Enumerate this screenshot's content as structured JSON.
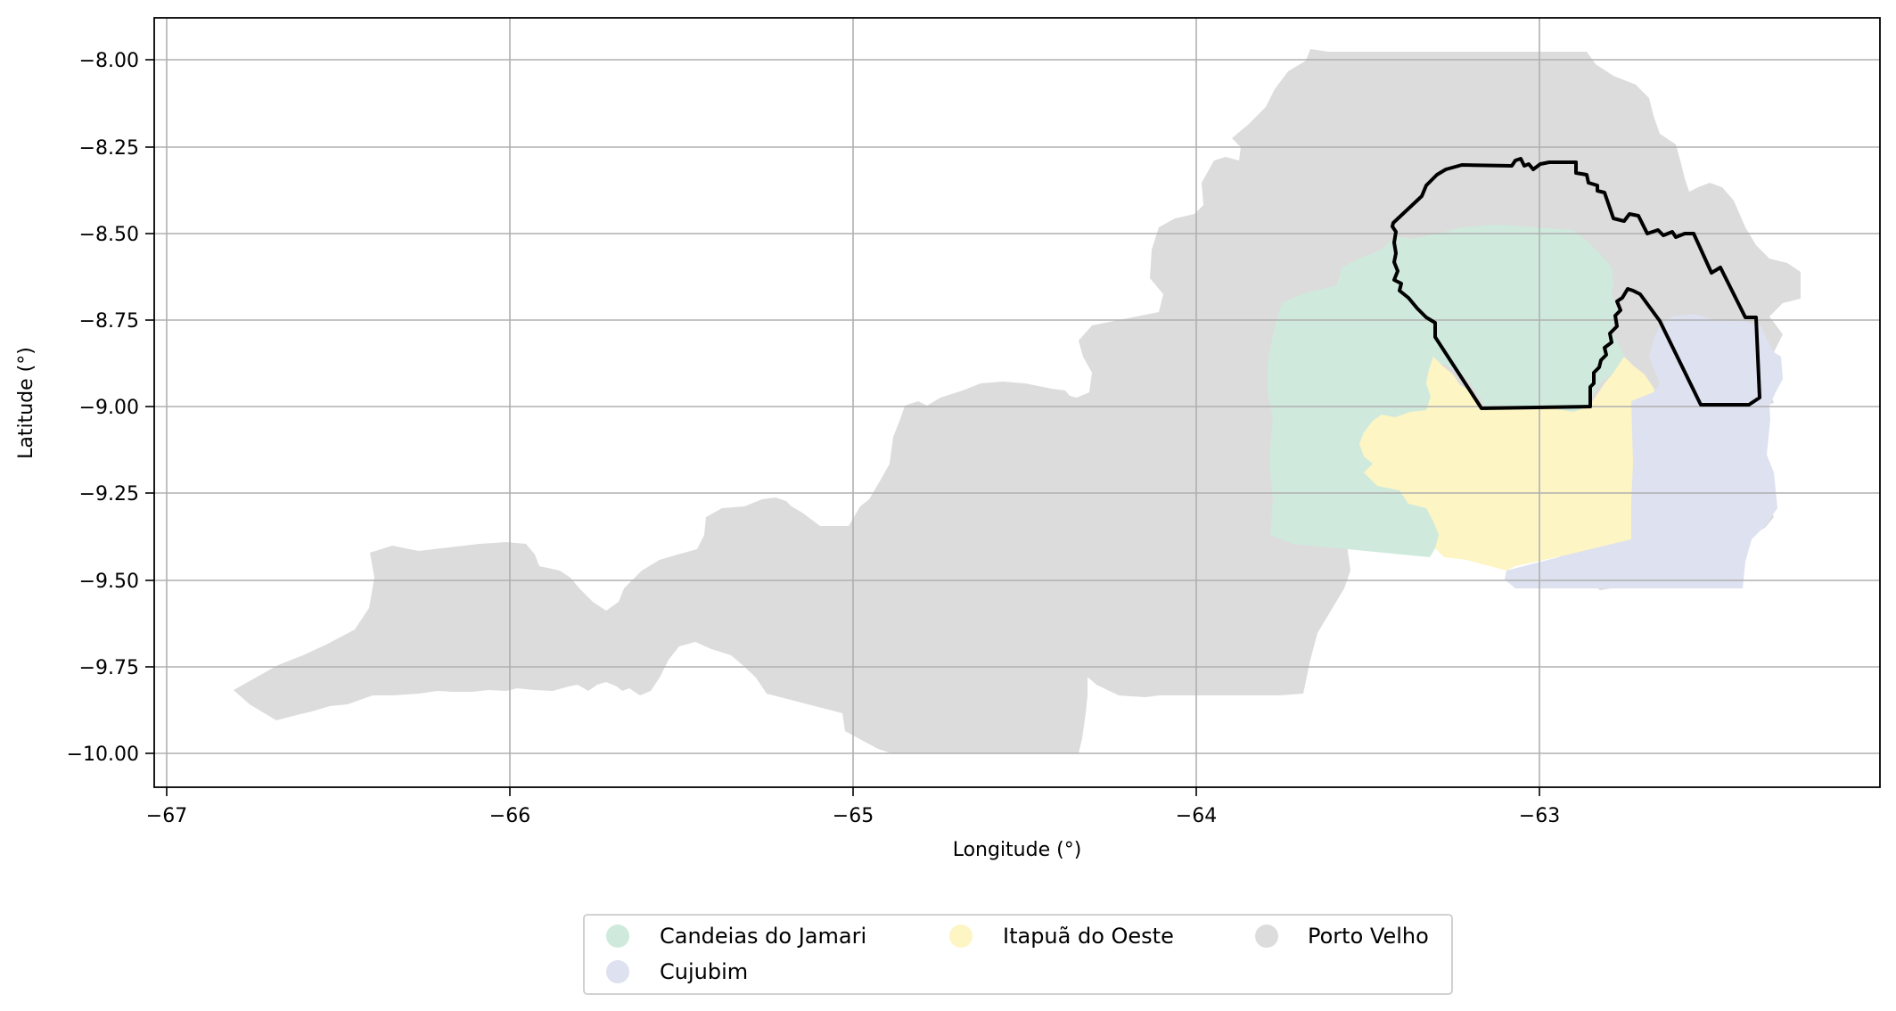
{
  "map": {
    "xlabel": "Longitude (°)",
    "ylabel": "Latitude (°)",
    "x_ticks": [
      -67,
      -66,
      -65,
      -64,
      -63
    ],
    "y_ticks": [
      -8.0,
      -8.25,
      -8.5,
      -8.75,
      -9.0,
      -9.25,
      -9.5,
      -9.75,
      -10.0
    ],
    "x_tick_labels": [
      "−67",
      "−66",
      "−65",
      "−64",
      "−63"
    ],
    "y_tick_labels": [
      "−8.00",
      "−8.25",
      "−8.50",
      "−8.75",
      "−9.00",
      "−9.25",
      "−9.50",
      "−9.75",
      "−10.00"
    ],
    "xlim": [
      -67.03,
      -62.0
    ],
    "ylim": [
      -10.1,
      -7.88
    ],
    "grid": true,
    "legend": {
      "position": "bottom-center",
      "columns": 3,
      "entries": [
        {
          "label": "Candeias do Jamari",
          "color": "#cfeadd"
        },
        {
          "label": "Itapuã do Oeste",
          "color": "#fdf5c4"
        },
        {
          "label": "Porto Velho",
          "color": "#dcdcdc"
        },
        {
          "label": "Cujubim",
          "color": "#dde1f0"
        }
      ]
    },
    "regions": [
      {
        "name": "Porto Velho",
        "color": "#dcdcdc"
      },
      {
        "name": "Candeias do Jamari",
        "color": "#cfeadd"
      },
      {
        "name": "Itapuã do Oeste",
        "color": "#fdf5c4"
      },
      {
        "name": "Cujubim",
        "color": "#dde1f0"
      }
    ],
    "outline_color": "#000000"
  }
}
